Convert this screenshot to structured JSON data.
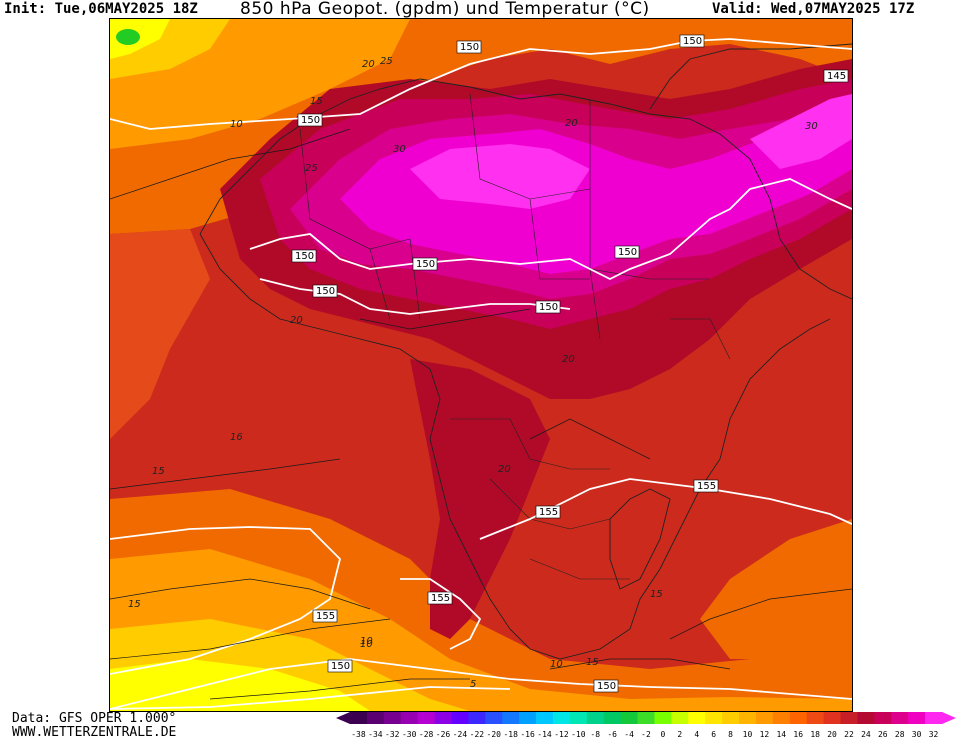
{
  "header": {
    "init": "Init: Tue,06MAY2025 18Z",
    "title": "850 hPa Geopot. (gpdm) und Temperatur (°C)",
    "valid": "Valid: Wed,07MAY2025 17Z"
  },
  "footer": {
    "data_source": "Data: GFS OPER 1.000°",
    "website": "WWW.WETTERZENTRALE.DE"
  },
  "colors": {
    "yellow": "#ffff00",
    "orange_light": "#ffcc00",
    "orange": "#ff9a00",
    "orange_dark": "#f06a00",
    "red_orange": "#e44a1a",
    "red": "#cc2a1c",
    "dark_red": "#b00a28",
    "crimson": "#c8005a",
    "magenta_dark": "#d8008c",
    "magenta": "#f000d0",
    "magenta_light": "#ff30f0",
    "green_blob": "#22cc22",
    "isohypse": "#ffffff",
    "isotherm": "#1a1a1a"
  },
  "legend": {
    "ticks": [
      "-38",
      "-34",
      "-32",
      "-30",
      "-28",
      "-26",
      "-24",
      "-22",
      "-20",
      "-18",
      "-16",
      "-14",
      "-12",
      "-10",
      "-8",
      "-6",
      "-4",
      "-2",
      "0",
      "2",
      "4",
      "6",
      "8",
      "10",
      "12",
      "14",
      "16",
      "18",
      "20",
      "22",
      "24",
      "26",
      "28",
      "30",
      "32"
    ],
    "colors": [
      "#3c0050",
      "#5a0070",
      "#780090",
      "#9600b0",
      "#b400d0",
      "#8c00e6",
      "#6400ff",
      "#3c28ff",
      "#2850ff",
      "#1478ff",
      "#00a0ff",
      "#00c8ff",
      "#00e6e6",
      "#00e6b4",
      "#00d28c",
      "#00c864",
      "#14c83c",
      "#3cdc28",
      "#78ff00",
      "#c8ff00",
      "#ffff00",
      "#ffe600",
      "#ffcc00",
      "#ffb400",
      "#ff9a00",
      "#ff8000",
      "#ff6400",
      "#f04a14",
      "#e0321e",
      "#c81e28",
      "#b40a32",
      "#c8005a",
      "#dc008c",
      "#f000c0",
      "#ff28f0"
    ]
  },
  "isohypse_labels": [
    "150",
    "150",
    "150",
    "150",
    "150",
    "150",
    "150",
    "150",
    "145",
    "155",
    "155",
    "155",
    "155",
    "150",
    "150"
  ],
  "isotherm_labels": [
    "25",
    "20",
    "15",
    "10",
    "30",
    "25",
    "20",
    "30",
    "20",
    "16",
    "15",
    "20",
    "15",
    "10",
    "10",
    "15",
    "5",
    "20",
    "15",
    "10"
  ]
}
